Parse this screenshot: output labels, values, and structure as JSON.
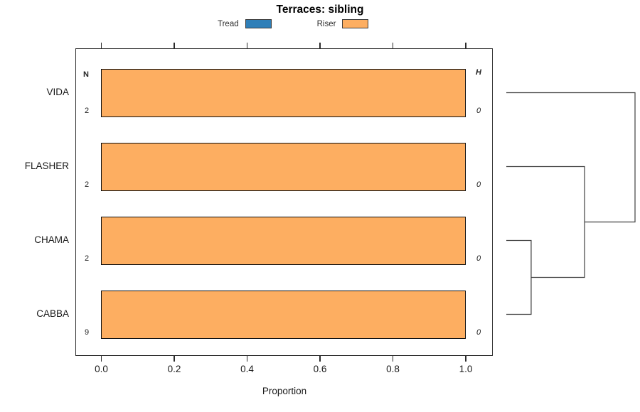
{
  "title": "Terraces: sibling",
  "legend": {
    "items": [
      {
        "label": "Tread",
        "color": "#2F7FB8"
      },
      {
        "label": "Riser",
        "color": "#FDAE61"
      }
    ]
  },
  "chart_data": {
    "type": "bar",
    "orientation": "horizontal",
    "stacked": true,
    "title": "Terraces: sibling",
    "xlabel": "Proportion",
    "xlim": [
      0,
      1
    ],
    "xticks": [
      "0.0",
      "0.2",
      "0.4",
      "0.6",
      "0.8",
      "1.0"
    ],
    "grid": false,
    "legend_position": "top",
    "categories": [
      "VIDA",
      "FLASHER",
      "CHAMA",
      "CABBA"
    ],
    "series": [
      {
        "name": "Tread",
        "color": "#2F7FB8",
        "values": [
          0,
          0,
          0,
          0
        ]
      },
      {
        "name": "Riser",
        "color": "#FDAE61",
        "values": [
          1.0,
          1.0,
          1.0,
          1.0
        ]
      }
    ],
    "annotations": {
      "left_header": "N",
      "left_values": [
        "2",
        "2",
        "2",
        "9"
      ],
      "right_header": "H",
      "right_values": [
        "0",
        "0",
        "0",
        "0"
      ]
    },
    "dendrogram": {
      "leaves": [
        "VIDA",
        "FLASHER",
        "CHAMA",
        "CABBA"
      ],
      "joins": [
        {
          "a": "CHAMA",
          "b": "CABBA",
          "height": 0.193
        },
        {
          "a": "node0",
          "b": "FLASHER",
          "height": 0.608
        },
        {
          "a": "node1",
          "b": "VIDA",
          "height": 1.0
        }
      ]
    }
  }
}
